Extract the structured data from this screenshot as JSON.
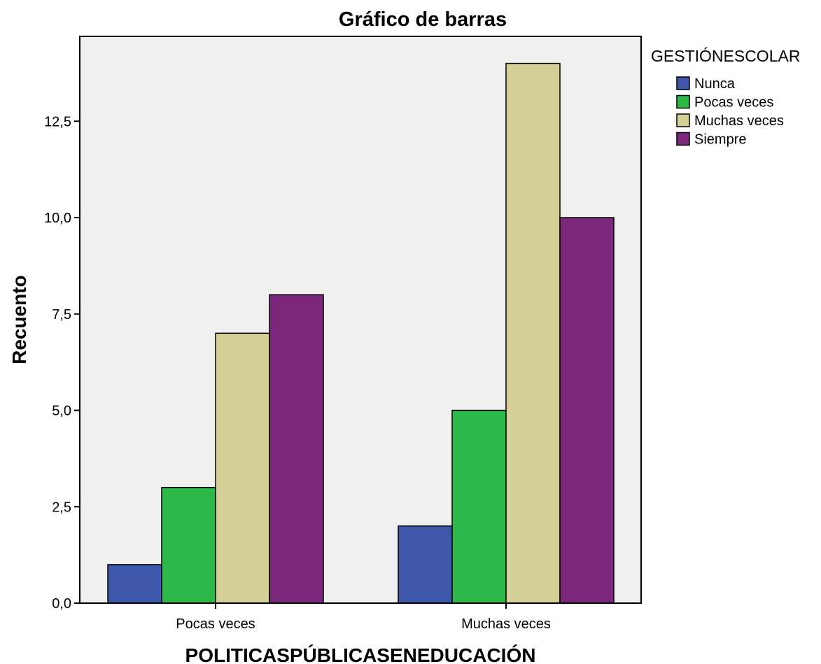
{
  "chart_data": {
    "type": "bar",
    "title": "Gráfico de barras",
    "xlabel": "POLITICASPÚBLICASENEDUCACIÓN",
    "ylabel": "Recuento",
    "categories": [
      "Pocas veces",
      "Muchas veces"
    ],
    "series": [
      {
        "name": "Nunca",
        "values": [
          1,
          2
        ],
        "color": "#3f57aa"
      },
      {
        "name": "Pocas veces",
        "values": [
          3,
          5
        ],
        "color": "#2db84a"
      },
      {
        "name": "Muchas veces",
        "values": [
          7,
          14
        ],
        "color": "#d4d098"
      },
      {
        "name": "Siempre",
        "values": [
          8,
          10
        ],
        "color": "#7b287c"
      }
    ],
    "ylim": [
      0,
      14.5
    ],
    "yticks": [
      "0,0",
      "2,5",
      "5,0",
      "7,5",
      "10,0",
      "12,5"
    ],
    "ytick_values": [
      0,
      2.5,
      5,
      7.5,
      10,
      12.5
    ],
    "legend": {
      "title": "GESTIÓNESCOLAR",
      "placement": "top-right outside"
    },
    "grid": false,
    "plot_background": "#f0f0f0"
  }
}
